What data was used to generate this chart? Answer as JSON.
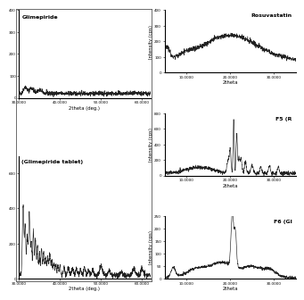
{
  "background_color": "#ffffff",
  "line_color": "#222222",
  "xlim_left": [
    30,
    62
  ],
  "xlim_right": [
    5,
    35
  ],
  "ylim_glim": [
    0,
    400
  ],
  "ylim_glim_tab": [
    0,
    700
  ],
  "ylim_rosu": [
    0,
    400
  ],
  "ylim_f5": [
    0,
    800
  ],
  "ylim_f6": [
    0,
    250
  ],
  "title_glim": "Glimepiride",
  "title_glim_tab": "Glimepiride tablet)",
  "label_rosu": "Rosuvastatin",
  "label_f5": "F5 (R",
  "label_f6": "F6 (Gl",
  "ylabel": "Intensity (cps)",
  "xlabel_left": "2theta (deg.)",
  "xlabel_right": "2theta",
  "xticks_left": [
    30,
    40,
    50,
    60
  ],
  "xtick_labels_left": [
    "30.0000",
    "40.0000",
    "50.0000",
    "60.0000"
  ],
  "xticks_right": [
    10,
    20,
    30
  ],
  "xtick_labels_right": [
    "10.0000",
    "20.0000",
    "30.0000"
  ],
  "yticks_rosu": [
    0,
    100,
    200,
    300,
    400
  ],
  "yticks_f5": [
    0,
    200,
    400,
    600,
    800
  ],
  "yticks_f6": [
    0,
    50,
    100,
    150,
    200,
    250
  ]
}
